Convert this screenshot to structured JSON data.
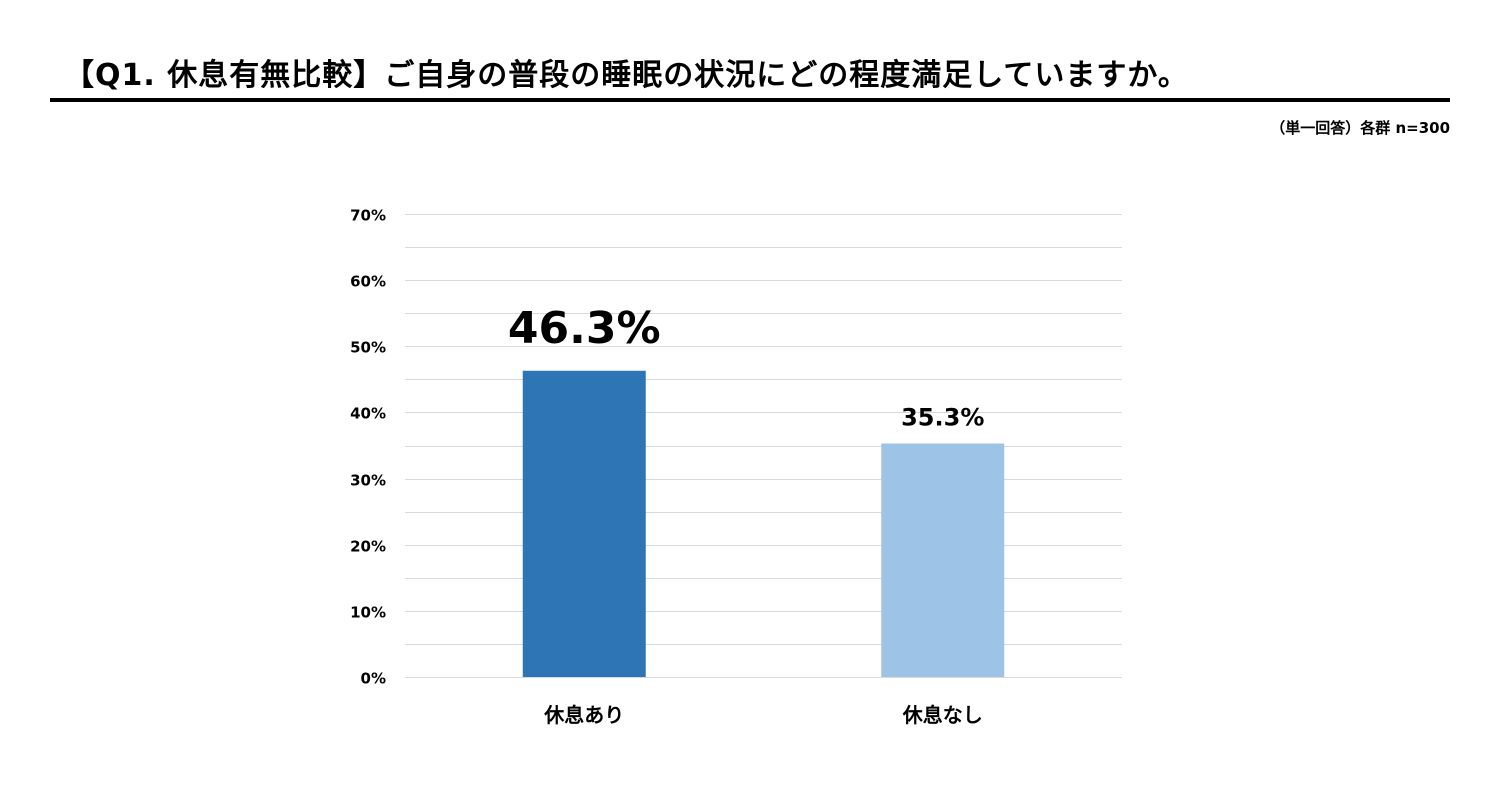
{
  "header": {
    "title": "【Q1. 休息有無比較】ご自身の普段の睡眠の状況にどの程度満足していますか。",
    "sample_note": "（単一回答）各群 n=300"
  },
  "chart_data": {
    "type": "bar",
    "categories": [
      "休息あり",
      "休息なし"
    ],
    "values": [
      46.3,
      35.3
    ],
    "data_labels": [
      "46.3%",
      "35.3%"
    ],
    "bar_colors": [
      "#2E75B6",
      "#9DC3E6"
    ],
    "gridline_color": "#D9D9D9",
    "yticks": [
      0,
      10,
      20,
      30,
      40,
      50,
      60,
      70
    ],
    "ytick_labels": [
      "0%",
      "10%",
      "20%",
      "30%",
      "40%",
      "50%",
      "60%",
      "70%"
    ],
    "ylim": [
      0,
      70
    ],
    "minor_gridlines": true,
    "legend": "none",
    "title": "",
    "xlabel": "",
    "ylabel": ""
  }
}
